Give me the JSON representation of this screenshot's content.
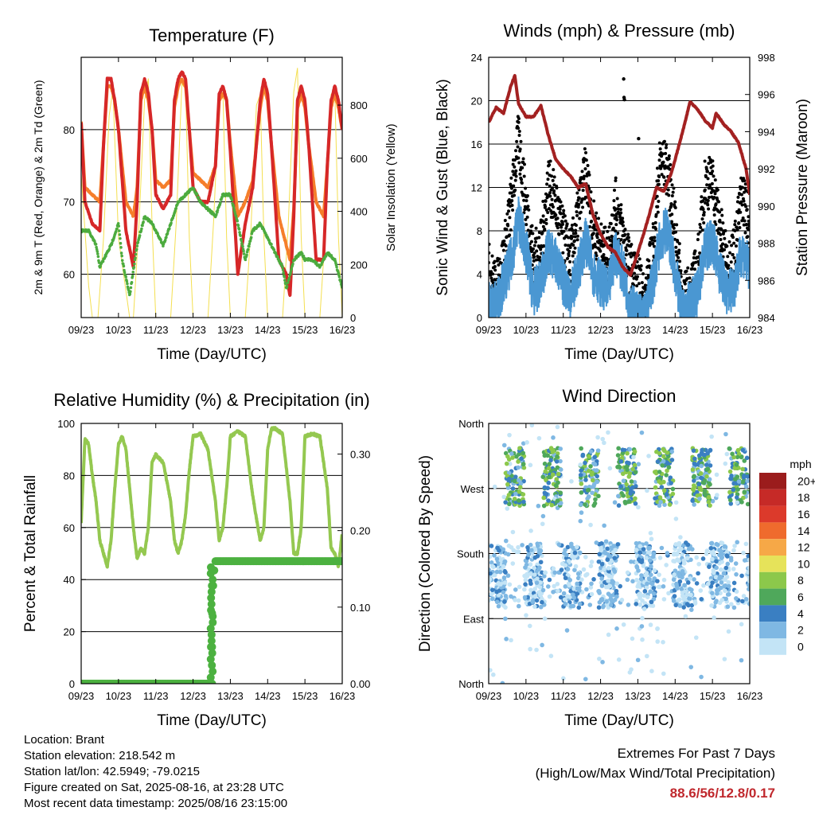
{
  "x_ticks": [
    "09/23",
    "10/23",
    "11/23",
    "12/23",
    "13/23",
    "14/23",
    "15/23",
    "16/23"
  ],
  "x_title": "Time (Day/UTC)",
  "info": {
    "location": "Location: Brant",
    "elevation": "Station elevation: 218.542 m",
    "latlon": "Station lat/lon: 42.5949; -79.0215",
    "created": "Figure created on Sat, 2025-08-16, at 23:28 UTC",
    "recent": "Most recent data timestamp: 2025/08/16 23:15:00"
  },
  "extremes": {
    "title": "Extremes For Past 7 Days",
    "subtitle": "(High/Low/Max Wind/Total Precipitation)",
    "values": "88.6/56/12.8/0.17"
  },
  "colors": {
    "temp2m": "#d62728",
    "temp9m": "#f57e2a",
    "dewpoint": "#4cab3e",
    "solar": "#f4df50",
    "pressure": "#a32121",
    "gust": "#000000",
    "sonic": "#4a97d2",
    "rh": "#94c850",
    "precip": "#4cb140"
  },
  "chart_data": [
    {
      "type": "line",
      "title": "Temperature (F)",
      "xlabel": "Time (Day/UTC)",
      "ylabel": "2m & 9m T (Red, Orange) & 2m Td (Green)",
      "y2label": "Solar Insolation (Yellow)",
      "xlim": [
        9,
        16
      ],
      "ylim": [
        54,
        90
      ],
      "y2lim": [
        0,
        980
      ],
      "yticks": [
        60,
        70,
        80
      ],
      "y2ticks": [
        0,
        200,
        400,
        600,
        800
      ],
      "grid": "horizontal",
      "series": [
        {
          "key": "t2m",
          "axis": "left",
          "x": [
            9.0,
            9.1,
            9.3,
            9.5,
            9.6,
            9.7,
            9.8,
            9.9,
            10.0,
            10.2,
            10.4,
            10.5,
            10.6,
            10.7,
            10.8,
            10.9,
            11.0,
            11.2,
            11.4,
            11.5,
            11.6,
            11.7,
            11.8,
            11.9,
            12.0,
            12.2,
            12.4,
            12.6,
            12.7,
            12.8,
            12.9,
            13.0,
            13.2,
            13.4,
            13.6,
            13.7,
            13.8,
            13.9,
            14.0,
            14.1,
            14.3,
            14.5,
            14.6,
            14.7,
            14.8,
            14.9,
            15.0,
            15.1,
            15.3,
            15.5,
            15.6,
            15.7,
            15.8,
            15.9,
            16.0
          ],
          "y": [
            81,
            70,
            67,
            66,
            78,
            87,
            87,
            84,
            80,
            66,
            61,
            70,
            85,
            87,
            85,
            80,
            71,
            69,
            71,
            84,
            87,
            88,
            87,
            80,
            72,
            70,
            70,
            75,
            85,
            86,
            84,
            77,
            60,
            67,
            72,
            78,
            84,
            87,
            85,
            78,
            62,
            60,
            57,
            68,
            84,
            86,
            84,
            78,
            62,
            62,
            75,
            84,
            86,
            84,
            80
          ]
        },
        {
          "key": "t9m",
          "axis": "left",
          "x": [
            9.0,
            9.1,
            9.3,
            9.5,
            9.6,
            9.7,
            9.8,
            9.9,
            10.0,
            10.2,
            10.4,
            10.5,
            10.6,
            10.7,
            10.8,
            10.9,
            11.0,
            11.2,
            11.4,
            11.5,
            11.6,
            11.7,
            11.8,
            11.9,
            12.0,
            12.2,
            12.4,
            12.6,
            12.7,
            12.8,
            12.9,
            13.0,
            13.2,
            13.4,
            13.6,
            13.7,
            13.8,
            13.9,
            14.0,
            14.1,
            14.3,
            14.5,
            14.6,
            14.7,
            14.8,
            14.9,
            15.0,
            15.1,
            15.3,
            15.5,
            15.6,
            15.7,
            15.8,
            15.9,
            16.0
          ],
          "y": [
            81,
            72,
            71,
            70,
            78,
            86,
            86,
            84,
            80,
            70,
            68,
            72,
            84,
            86,
            84,
            80,
            73,
            72,
            73,
            83,
            86,
            87,
            86,
            80,
            74,
            73,
            72,
            75,
            84,
            85,
            84,
            78,
            68,
            70,
            73,
            78,
            83,
            86,
            84,
            78,
            68,
            64,
            62,
            69,
            83,
            85,
            83,
            78,
            70,
            68,
            75,
            83,
            85,
            83,
            80
          ]
        },
        {
          "key": "td2m",
          "axis": "left",
          "x": [
            9.0,
            9.2,
            9.4,
            9.5,
            9.6,
            9.8,
            10.0,
            10.1,
            10.3,
            10.5,
            10.7,
            10.9,
            11.0,
            11.2,
            11.4,
            11.6,
            11.8,
            12.0,
            12.2,
            12.4,
            12.6,
            12.8,
            13.0,
            13.2,
            13.4,
            13.6,
            13.8,
            14.0,
            14.2,
            14.4,
            14.5,
            14.7,
            14.9,
            15.0,
            15.2,
            15.4,
            15.6,
            15.8,
            16.0
          ],
          "y": [
            66,
            66,
            64,
            61,
            62,
            64,
            67,
            62,
            57,
            64,
            68,
            67,
            66,
            64,
            67,
            70,
            71,
            72,
            70,
            69,
            68,
            71,
            71,
            67,
            62,
            66,
            67,
            65,
            63,
            61,
            58,
            62,
            63,
            62,
            62,
            61,
            63,
            62,
            58
          ]
        },
        {
          "key": "solar",
          "axis": "right",
          "x": [
            9.0,
            9.2,
            9.3,
            9.45,
            9.6,
            9.75,
            9.85,
            10.0,
            10.3,
            10.4,
            10.55,
            10.7,
            10.8,
            10.9,
            11.0,
            11.3,
            11.4,
            11.55,
            11.7,
            11.8,
            11.9,
            12.0,
            12.3,
            12.4,
            12.55,
            12.7,
            12.8,
            12.9,
            13.0,
            13.3,
            13.4,
            13.55,
            13.7,
            13.8,
            13.9,
            14.0,
            14.3,
            14.4,
            14.55,
            14.7,
            14.8,
            14.9,
            15.0,
            15.3,
            15.4,
            15.55,
            15.7,
            15.8,
            15.9,
            16.0
          ],
          "y": [
            540,
            120,
            0,
            0,
            300,
            760,
            860,
            300,
            0,
            0,
            350,
            820,
            900,
            350,
            0,
            0,
            0,
            360,
            880,
            860,
            300,
            0,
            0,
            0,
            360,
            820,
            850,
            300,
            0,
            0,
            0,
            330,
            800,
            840,
            300,
            0,
            0,
            0,
            340,
            850,
            940,
            300,
            0,
            0,
            0,
            330,
            840,
            860,
            300,
            0
          ]
        }
      ]
    },
    {
      "type": "line",
      "title": "Winds (mph) & Pressure (mb)",
      "xlabel": "Time (Day/UTC)",
      "ylabel": "Sonic Wind & Gust (Blue, Black)",
      "y2label": "Station Pressure (Maroon)",
      "xlim": [
        9,
        16
      ],
      "ylim": [
        0,
        24
      ],
      "y2lim": [
        984,
        998
      ],
      "yticks": [
        0,
        4,
        8,
        12,
        16,
        20,
        24
      ],
      "y2ticks": [
        984,
        986,
        988,
        990,
        992,
        994,
        996,
        998
      ],
      "grid": "horizontal",
      "series": [
        {
          "key": "pressure",
          "axis": "right",
          "x": [
            9.0,
            9.2,
            9.4,
            9.6,
            9.7,
            9.8,
            10.0,
            10.2,
            10.4,
            10.6,
            10.8,
            11.0,
            11.2,
            11.4,
            11.6,
            11.8,
            12.0,
            12.2,
            12.4,
            12.6,
            12.8,
            13.0,
            13.2,
            13.3,
            13.5,
            13.7,
            13.9,
            14.0,
            14.2,
            14.4,
            14.6,
            14.8,
            15.0,
            15.1,
            15.3,
            15.5,
            15.7,
            15.9,
            16.0
          ],
          "y": [
            994.5,
            995.3,
            995.0,
            996.5,
            997.0,
            995.5,
            994.8,
            994.8,
            995.4,
            993.8,
            992.5,
            992.0,
            991.6,
            991.0,
            991.2,
            989.5,
            988.5,
            987.8,
            987.5,
            986.7,
            986.3,
            987.5,
            988.8,
            989.5,
            991.0,
            990.8,
            991.8,
            992.5,
            994.0,
            995.6,
            995.2,
            994.6,
            994.2,
            995.0,
            994.4,
            994.0,
            993.4,
            992.0,
            990.6
          ]
        },
        {
          "key": "gust",
          "axis": "left",
          "x": [
            9.0,
            9.2,
            9.4,
            9.6,
            9.8,
            10.0,
            10.2,
            10.4,
            10.6,
            10.8,
            11.0,
            11.2,
            11.4,
            11.6,
            11.8,
            12.0,
            12.2,
            12.4,
            12.6,
            12.8,
            13.0,
            13.2,
            13.4,
            13.6,
            13.8,
            14.0,
            14.2,
            14.4,
            14.6,
            14.8,
            15.0,
            15.2,
            15.4,
            15.6,
            15.8,
            16.0
          ],
          "y": [
            4,
            2,
            5,
            10,
            16,
            10,
            5,
            6,
            12,
            10,
            7,
            5,
            9,
            13,
            8,
            6,
            5,
            10,
            7,
            4,
            3,
            1,
            6,
            14,
            13,
            8,
            1,
            2,
            4,
            12,
            12,
            8,
            4,
            6,
            11,
            8
          ]
        },
        {
          "key": "sonic",
          "axis": "left",
          "x": [
            9.0,
            9.2,
            9.4,
            9.6,
            9.8,
            10.0,
            10.2,
            10.4,
            10.6,
            10.8,
            11.0,
            11.2,
            11.4,
            11.6,
            11.8,
            12.0,
            12.2,
            12.4,
            12.6,
            12.8,
            13.0,
            13.2,
            13.4,
            13.6,
            13.8,
            14.0,
            14.2,
            14.4,
            14.6,
            14.8,
            15.0,
            15.2,
            15.4,
            15.6,
            15.8,
            16.0
          ],
          "y": [
            1,
            1,
            3,
            5,
            9,
            6,
            2,
            3,
            6,
            5,
            3,
            2,
            4,
            7,
            4,
            3,
            2,
            6,
            4,
            1,
            0,
            0,
            3,
            7,
            8,
            4,
            0,
            1,
            2,
            6,
            7,
            4,
            2,
            3,
            6,
            4
          ]
        }
      ]
    },
    {
      "type": "line",
      "title": "Relative Humidity (%) & Precipitation (in)",
      "xlabel": "Time (Day/UTC)",
      "ylabel": "Percent & Total Rainfall",
      "xlim": [
        9,
        16
      ],
      "ylim": [
        0,
        100
      ],
      "y2lim": [
        0,
        0.34
      ],
      "yticks": [
        0,
        20,
        40,
        60,
        80,
        100
      ],
      "y2ticks": [
        0.0,
        0.1,
        0.2,
        0.3
      ],
      "grid": "horizontal",
      "series": [
        {
          "key": "rh",
          "axis": "left",
          "x": [
            9.0,
            9.1,
            9.2,
            9.3,
            9.4,
            9.5,
            9.6,
            9.7,
            9.8,
            9.9,
            10.0,
            10.1,
            10.2,
            10.3,
            10.4,
            10.5,
            10.6,
            10.7,
            10.8,
            10.9,
            11.0,
            11.2,
            11.4,
            11.5,
            11.6,
            11.7,
            11.8,
            11.9,
            12.0,
            12.2,
            12.4,
            12.6,
            12.7,
            12.8,
            12.9,
            13.0,
            13.2,
            13.4,
            13.6,
            13.8,
            13.9,
            14.0,
            14.1,
            14.2,
            14.4,
            14.6,
            14.7,
            14.8,
            14.9,
            15.0,
            15.2,
            15.4,
            15.6,
            15.7,
            15.8,
            15.9,
            16.0
          ],
          "y": [
            62,
            94,
            92,
            80,
            70,
            55,
            50,
            45,
            55,
            75,
            92,
            95,
            90,
            75,
            60,
            48,
            52,
            50,
            60,
            85,
            88,
            85,
            70,
            55,
            50,
            55,
            65,
            82,
            95,
            96,
            90,
            70,
            55,
            60,
            75,
            95,
            97,
            95,
            72,
            55,
            60,
            90,
            98,
            98,
            96,
            70,
            50,
            50,
            60,
            95,
            96,
            95,
            75,
            52,
            50,
            45,
            58
          ]
        },
        {
          "key": "precip",
          "axis": "right",
          "x": [
            9.0,
            12.0,
            12.45,
            12.5,
            12.55,
            12.6,
            13.0,
            14.0,
            15.0,
            16.0
          ],
          "y": [
            0.0,
            0.0,
            0.0,
            0.08,
            0.14,
            0.16,
            0.16,
            0.16,
            0.16,
            0.16
          ]
        }
      ]
    },
    {
      "type": "scatter",
      "title": "Wind Direction",
      "xlabel": "Time (Day/UTC)",
      "ylabel": "Direction (Colored By Speed)",
      "xlim": [
        9,
        16
      ],
      "ylim": [
        0,
        360
      ],
      "ytick_labels": [
        "North",
        "East",
        "South",
        "West",
        "North"
      ],
      "yticks": [
        0,
        90,
        180,
        270,
        360
      ],
      "grid": "horizontal",
      "colorbar": {
        "title": "mph",
        "labels": [
          "20+",
          "18",
          "16",
          "14",
          "12",
          "10",
          "8",
          "6",
          "4",
          "2",
          "0"
        ],
        "colors": [
          "#9b1c1c",
          "#c62a27",
          "#dc3a2b",
          "#ef6b2d",
          "#f6a847",
          "#e6e35a",
          "#8cc84b",
          "#4fa85b",
          "#3a7fc2",
          "#7fb8e3",
          "#c3e4f6"
        ]
      },
      "day_direction": "W-NW",
      "night_direction": "SE-S"
    }
  ]
}
